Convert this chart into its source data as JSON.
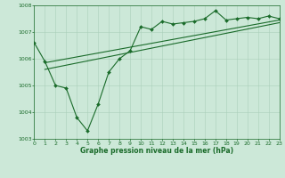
{
  "title": "Graphe pression niveau de la mer (hPa)",
  "background_color": "#cce8d8",
  "grid_color": "#aacfba",
  "line_color": "#1a6b2a",
  "ylim": [
    1003,
    1008
  ],
  "xlim": [
    0,
    23
  ],
  "yticks": [
    1003,
    1004,
    1005,
    1006,
    1007,
    1008
  ],
  "xticks": [
    0,
    1,
    2,
    3,
    4,
    5,
    6,
    7,
    8,
    9,
    10,
    11,
    12,
    13,
    14,
    15,
    16,
    17,
    18,
    19,
    20,
    21,
    22,
    23
  ],
  "series1_x": [
    0,
    1,
    2,
    3,
    4,
    5,
    6,
    7,
    8,
    9,
    10,
    11,
    12,
    13,
    14,
    15,
    16,
    17,
    18,
    19,
    20,
    21,
    22,
    23
  ],
  "series1_y": [
    1006.6,
    1005.9,
    1005.0,
    1004.9,
    1003.8,
    1003.3,
    1004.3,
    1005.5,
    1006.0,
    1006.3,
    1007.2,
    1007.1,
    1007.4,
    1007.3,
    1007.35,
    1007.4,
    1007.5,
    1007.8,
    1007.45,
    1007.5,
    1007.55,
    1007.5,
    1007.6,
    1007.5
  ],
  "series2_x": [
    1,
    23
  ],
  "series2_y": [
    1005.85,
    1007.45
  ],
  "series3_x": [
    1,
    23
  ],
  "series3_y": [
    1005.6,
    1007.35
  ],
  "marker_style": "D",
  "marker_size": 2.0,
  "line_width": 0.8,
  "tick_fontsize": 4.5,
  "xlabel_fontsize": 5.5,
  "fig_width": 3.2,
  "fig_height": 2.0,
  "dpi": 100
}
